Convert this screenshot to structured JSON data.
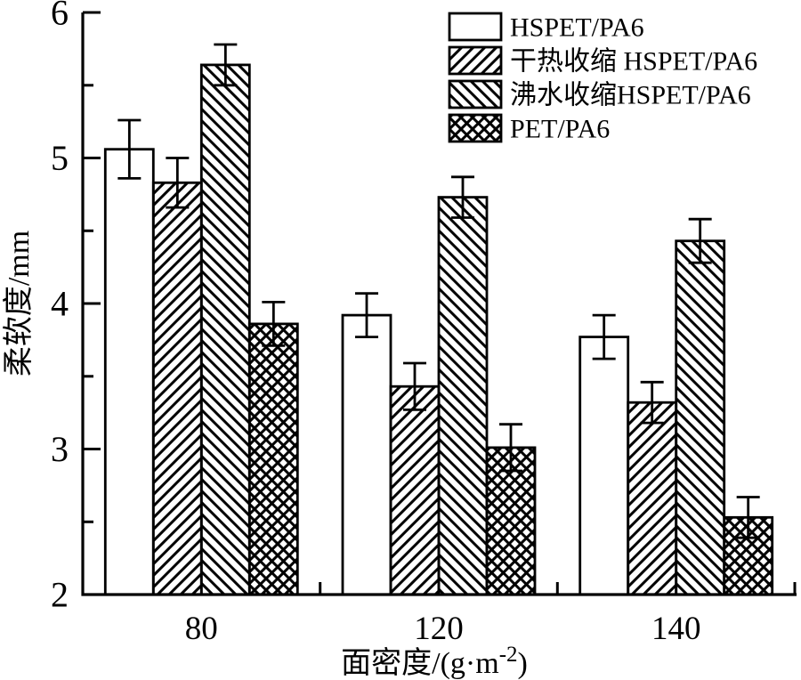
{
  "figure": {
    "background_color": "#ffffff",
    "ink_color": "#000000"
  },
  "chart_data": {
    "type": "bar",
    "title": "",
    "xlabel": "面密度/(g·m⁻²)",
    "xlabel_parts": {
      "pre": "面密度/(g·m",
      "sup": "-2",
      "post": ")"
    },
    "ylabel": "柔软度/mm",
    "categories": [
      "80",
      "120",
      "140"
    ],
    "ylim": [
      2,
      6
    ],
    "y_major_ticks": [
      2,
      3,
      4,
      5,
      6
    ],
    "y_minor_ticks": [
      2.5,
      3.5,
      4.5,
      5.5
    ],
    "grid": false,
    "legend_position": "top-right",
    "bar_fill": "#ffffff",
    "bar_edge": "#000000",
    "series": [
      {
        "name": "HSPET/PA6",
        "pattern": "none",
        "values": [
          5.06,
          3.92,
          3.77
        ],
        "errors": [
          0.2,
          0.15,
          0.15
        ]
      },
      {
        "name": "干热收缩 HSPET/PA6",
        "pattern": "diagonal-forward",
        "values": [
          4.83,
          3.43,
          3.32
        ],
        "errors": [
          0.17,
          0.16,
          0.14
        ]
      },
      {
        "name": "沸水收缩HSPET/PA6",
        "pattern": "diagonal-backward",
        "values": [
          5.64,
          4.73,
          4.43
        ],
        "errors": [
          0.14,
          0.14,
          0.15
        ]
      },
      {
        "name": "PET/PA6",
        "pattern": "crosshatch",
        "values": [
          3.86,
          3.01,
          2.53
        ],
        "errors": [
          0.15,
          0.16,
          0.14
        ]
      }
    ]
  }
}
